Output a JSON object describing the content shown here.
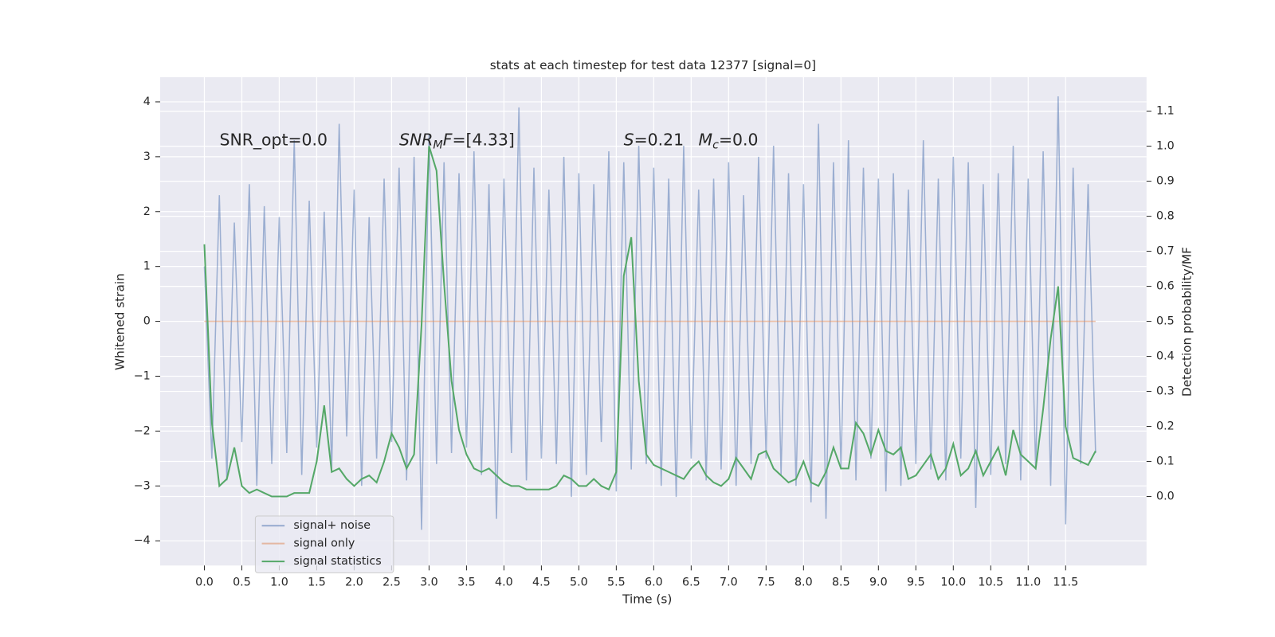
{
  "chart_data": {
    "type": "line",
    "title": "stats at each timestep for test data 12377 [signal=0]",
    "xlabel": "Time (s)",
    "ylabel": "Whitened strain",
    "y2label": "Detection probability/MF",
    "x": [
      0.0,
      0.1,
      0.2,
      0.3,
      0.4,
      0.5,
      0.6,
      0.7,
      0.8,
      0.9,
      1.0,
      1.1,
      1.2,
      1.3,
      1.4,
      1.5,
      1.6,
      1.7,
      1.8,
      1.9,
      2.0,
      2.1,
      2.2,
      2.3,
      2.4,
      2.5,
      2.6,
      2.7,
      2.8,
      2.9,
      3.0,
      3.1,
      3.2,
      3.3,
      3.4,
      3.5,
      3.6,
      3.7,
      3.8,
      3.9,
      4.0,
      4.1,
      4.2,
      4.3,
      4.4,
      4.5,
      4.6,
      4.7,
      4.8,
      4.9,
      5.0,
      5.1,
      5.2,
      5.3,
      5.4,
      5.5,
      5.6,
      5.7,
      5.8,
      5.9,
      6.0,
      6.1,
      6.2,
      6.3,
      6.4,
      6.5,
      6.6,
      6.7,
      6.8,
      6.9,
      7.0,
      7.1,
      7.2,
      7.3,
      7.4,
      7.5,
      7.6,
      7.7,
      7.8,
      7.9,
      8.0,
      8.1,
      8.2,
      8.3,
      8.4,
      8.5,
      8.6,
      8.7,
      8.8,
      8.9,
      9.0,
      9.1,
      9.2,
      9.3,
      9.4,
      9.5,
      9.6,
      9.7,
      9.8,
      9.9,
      10.0,
      10.1,
      10.2,
      10.3,
      10.4,
      10.5,
      10.6,
      10.7,
      10.8,
      10.9,
      11.0,
      11.1,
      11.2,
      11.3,
      11.4,
      11.5,
      11.6,
      11.7,
      11.8,
      11.9
    ],
    "series": [
      {
        "name": "signal+ noise",
        "color": "#4c72b0",
        "alpha": 0.5,
        "axis": "y",
        "values": [
          1.0,
          -2.5,
          2.3,
          -2.9,
          1.8,
          -2.2,
          2.5,
          -3.0,
          2.1,
          -2.6,
          1.9,
          -2.4,
          3.3,
          -2.8,
          2.2,
          -2.3,
          2.0,
          -2.7,
          3.6,
          -2.1,
          2.4,
          -3.0,
          1.9,
          -2.5,
          2.6,
          -2.2,
          2.8,
          -2.9,
          3.0,
          -3.8,
          3.4,
          -2.6,
          2.9,
          -2.4,
          2.7,
          -2.3,
          3.1,
          -2.8,
          2.5,
          -3.6,
          2.6,
          -2.4,
          3.9,
          -2.9,
          2.8,
          -2.5,
          2.4,
          -2.6,
          3.0,
          -3.2,
          2.7,
          -2.8,
          2.5,
          -2.2,
          3.1,
          -3.1,
          2.9,
          -2.7,
          3.2,
          -2.6,
          2.8,
          -3.0,
          2.6,
          -3.2,
          3.2,
          -2.5,
          2.4,
          -2.9,
          2.6,
          -2.7,
          2.9,
          -3.0,
          2.3,
          -2.6,
          3.0,
          -2.5,
          3.2,
          -2.8,
          2.7,
          -3.0,
          2.5,
          -3.3,
          3.6,
          -3.6,
          2.9,
          -2.7,
          3.3,
          -2.9,
          2.8,
          -2.5,
          2.6,
          -3.1,
          2.7,
          -3.0,
          2.4,
          -2.6,
          3.3,
          -2.7,
          2.6,
          -2.9,
          3.0,
          -2.5,
          2.9,
          -3.4,
          2.5,
          -2.8,
          2.7,
          -2.6,
          3.2,
          -2.9,
          2.6,
          -2.7,
          3.1,
          -3.0,
          4.1,
          -3.7,
          2.8,
          -2.6,
          2.5,
          -2.4
        ]
      },
      {
        "name": "signal only",
        "color": "#dd8452",
        "alpha": 0.5,
        "axis": "y",
        "values": [
          0,
          0,
          0,
          0,
          0,
          0,
          0,
          0,
          0,
          0,
          0,
          0,
          0,
          0,
          0,
          0,
          0,
          0,
          0,
          0,
          0,
          0,
          0,
          0,
          0,
          0,
          0,
          0,
          0,
          0,
          0,
          0,
          0,
          0,
          0,
          0,
          0,
          0,
          0,
          0,
          0,
          0,
          0,
          0,
          0,
          0,
          0,
          0,
          0,
          0,
          0,
          0,
          0,
          0,
          0,
          0,
          0,
          0,
          0,
          0,
          0,
          0,
          0,
          0,
          0,
          0,
          0,
          0,
          0,
          0,
          0,
          0,
          0,
          0,
          0,
          0,
          0,
          0,
          0,
          0,
          0,
          0,
          0,
          0,
          0,
          0,
          0,
          0,
          0,
          0,
          0,
          0,
          0,
          0,
          0,
          0,
          0,
          0,
          0,
          0,
          0,
          0,
          0,
          0,
          0,
          0,
          0,
          0,
          0,
          0,
          0,
          0,
          0,
          0,
          0,
          0,
          0,
          0,
          0,
          0
        ]
      },
      {
        "name": "signal statistics",
        "color": "#55a868",
        "alpha": 1,
        "axis": "y2",
        "values": [
          0.72,
          0.21,
          0.03,
          0.05,
          0.14,
          0.03,
          0.01,
          0.02,
          0.01,
          0.0,
          0.0,
          0.0,
          0.01,
          0.01,
          0.01,
          0.1,
          0.26,
          0.07,
          0.08,
          0.05,
          0.03,
          0.05,
          0.06,
          0.04,
          0.1,
          0.18,
          0.14,
          0.08,
          0.12,
          0.49,
          1.0,
          0.93,
          0.61,
          0.33,
          0.19,
          0.12,
          0.08,
          0.07,
          0.08,
          0.06,
          0.04,
          0.03,
          0.03,
          0.02,
          0.02,
          0.02,
          0.02,
          0.03,
          0.06,
          0.05,
          0.03,
          0.03,
          0.05,
          0.03,
          0.02,
          0.07,
          0.63,
          0.74,
          0.33,
          0.12,
          0.09,
          0.08,
          0.07,
          0.06,
          0.05,
          0.08,
          0.1,
          0.06,
          0.04,
          0.03,
          0.05,
          0.11,
          0.08,
          0.05,
          0.12,
          0.13,
          0.08,
          0.06,
          0.04,
          0.05,
          0.1,
          0.04,
          0.03,
          0.07,
          0.14,
          0.08,
          0.08,
          0.21,
          0.18,
          0.12,
          0.19,
          0.13,
          0.12,
          0.14,
          0.05,
          0.06,
          0.09,
          0.12,
          0.05,
          0.08,
          0.15,
          0.06,
          0.08,
          0.13,
          0.06,
          0.1,
          0.14,
          0.06,
          0.19,
          0.12,
          0.1,
          0.08,
          0.25,
          0.45,
          0.6,
          0.2,
          0.11,
          0.1,
          0.09,
          0.13
        ]
      }
    ],
    "xlim": [
      -0.59,
      12.58
    ],
    "ylim": [
      -4.45,
      4.45
    ],
    "y2lim": [
      -0.197,
      1.197
    ],
    "xticks": [
      {
        "value": 0,
        "label": "0.0"
      },
      0.5,
      {
        "value": 1,
        "label": "1.0"
      },
      1.5,
      {
        "value": 2,
        "label": "2.0"
      },
      2.5,
      {
        "value": 3,
        "label": "3.0"
      },
      3.5,
      {
        "value": 4,
        "label": "4.0"
      },
      4.5,
      {
        "value": 5,
        "label": "5.0"
      },
      5.5,
      {
        "value": 6,
        "label": "6.0"
      },
      6.5,
      {
        "value": 7,
        "label": "7.0"
      },
      7.5,
      {
        "value": 8,
        "label": "8.0"
      },
      8.5,
      {
        "value": 9,
        "label": "9.0"
      },
      9.5,
      {
        "value": 10,
        "label": "10.0"
      },
      10.5,
      {
        "value": 11,
        "label": "11.0"
      },
      11.5
    ],
    "yticks": [
      {
        "value": -4,
        "label": "−4"
      },
      {
        "value": -3,
        "label": "−3"
      },
      {
        "value": -2,
        "label": "−2"
      },
      {
        "value": -1,
        "label": "−1"
      },
      0,
      1,
      2,
      3,
      4
    ],
    "y2ticks": [
      {
        "value": 0,
        "label": "0.0"
      },
      0.1,
      0.2,
      0.3,
      0.4,
      0.5,
      0.6,
      0.7,
      0.8,
      0.9,
      {
        "value": 1,
        "label": "1.0"
      },
      1.1
    ],
    "grid": true,
    "legend": "lower left",
    "annotations": [
      [
        {
          "text": "SNR_opt=0.0",
          "style": "normal"
        }
      ],
      [
        {
          "text": "SNR",
          "style": "italic"
        },
        {
          "text": "M",
          "style": "sub"
        },
        {
          "text": "F",
          "style": "italic"
        },
        {
          "text": "=[4.33]",
          "style": "normal"
        }
      ],
      [
        {
          "text": "S",
          "style": "italic"
        },
        {
          "text": "=0.21",
          "style": "normal"
        }
      ],
      [
        {
          "text": "M",
          "style": "italic"
        },
        {
          "text": "c",
          "style": "sub"
        },
        {
          "text": "=0.0",
          "style": "normal"
        }
      ]
    ]
  }
}
